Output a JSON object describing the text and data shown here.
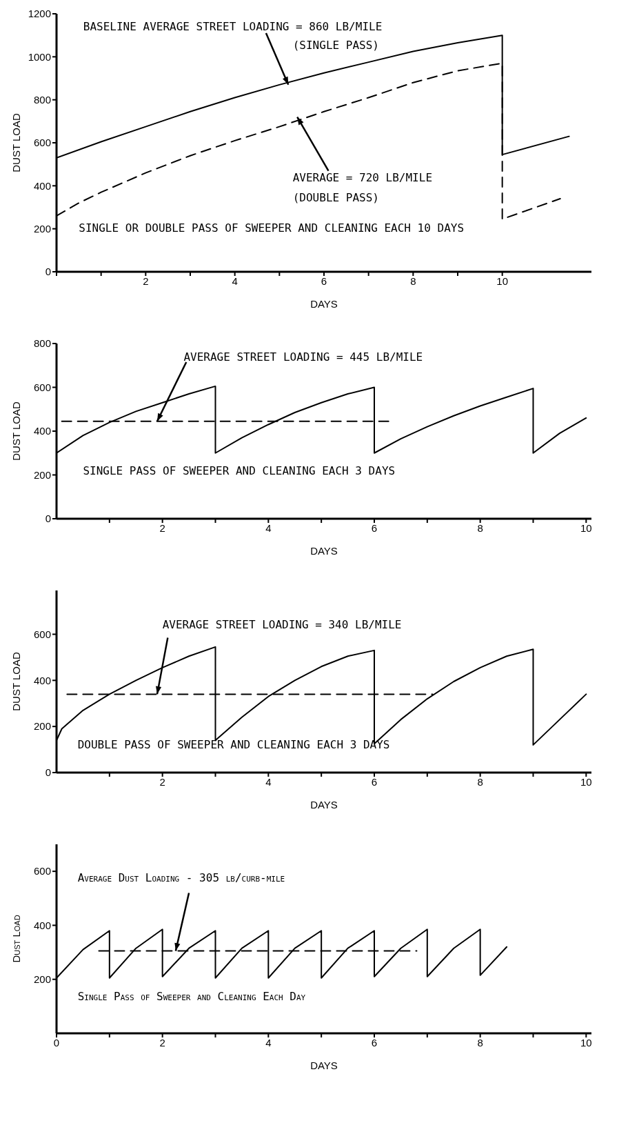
{
  "chart_data": [
    {
      "type": "line",
      "xlabel": "DAYS",
      "ylabel": "DUST LOAD",
      "xlim": [
        0,
        12
      ],
      "ylim": [
        0,
        1200
      ],
      "xticks": [
        {
          "value": 0,
          "label": null
        },
        {
          "value": 1,
          "label": null
        },
        2,
        {
          "value": 3,
          "label": null
        },
        4,
        {
          "value": 5,
          "label": null
        },
        6,
        {
          "value": 7,
          "label": null
        },
        8,
        {
          "value": 9,
          "label": null
        },
        10
      ],
      "yticks": [
        0,
        200,
        400,
        600,
        800,
        1000,
        1200
      ],
      "series": [
        {
          "type": "line",
          "color": "#000000",
          "line_style": "solid",
          "x": [
            0,
            1,
            2,
            3,
            4,
            5,
            6,
            7,
            8,
            9,
            10,
            10,
            11.5
          ],
          "values": [
            530,
            605,
            675,
            745,
            810,
            870,
            925,
            975,
            1025,
            1065,
            1100,
            545,
            630
          ]
        },
        {
          "type": "line",
          "color": "#000000",
          "line_style": "dashed",
          "x": [
            0,
            0.5,
            1,
            2,
            3,
            4,
            5,
            6,
            7,
            8,
            9,
            10,
            10,
            11.3
          ],
          "values": [
            260,
            320,
            370,
            460,
            540,
            610,
            675,
            745,
            810,
            880,
            935,
            970,
            245,
            340
          ]
        }
      ],
      "annotations": [
        {
          "text": "BASELINE AVERAGE STREET LOADING = 860 LB/MILE",
          "x": 5.2,
          "y": 870
        },
        "(SINGLE PASS)",
        {
          "text": "AVERAGE = 720 LB/MILE",
          "x": 5.4,
          "y": 720
        },
        "(DOUBLE PASS)",
        "SINGLE OR DOUBLE PASS OF SWEEPER AND CLEANING EACH 10 DAYS"
      ]
    },
    {
      "type": "line",
      "xlabel": "DAYS",
      "ylabel": "DUST LOAD",
      "xlim": [
        0,
        10.1
      ],
      "ylim": [
        0,
        800
      ],
      "xticks": [
        {
          "value": 1,
          "label": null
        },
        2,
        {
          "value": 3,
          "label": null
        },
        4,
        {
          "value": 5,
          "label": null
        },
        6,
        {
          "value": 7,
          "label": null
        },
        8,
        {
          "value": 9,
          "label": null
        },
        10
      ],
      "yticks": [
        0,
        200,
        400,
        600,
        800
      ],
      "series": [
        {
          "type": "line",
          "color": "#000000",
          "line_style": "solid",
          "x": [
            0,
            0.5,
            1,
            1.5,
            2,
            2.5,
            3,
            3,
            3.5,
            4,
            4.5,
            5,
            5.5,
            6,
            6,
            6.5,
            7,
            7.5,
            8,
            8.5,
            9,
            9,
            9.5,
            10
          ],
          "values": [
            300,
            380,
            440,
            490,
            530,
            570,
            605,
            300,
            370,
            430,
            485,
            530,
            570,
            600,
            300,
            365,
            420,
            470,
            515,
            555,
            595,
            300,
            390,
            460
          ]
        },
        {
          "type": "line",
          "color": "#000000",
          "line_style": "dashed",
          "x": [
            0.1,
            6.3
          ],
          "values": [
            445,
            445
          ]
        }
      ],
      "annotations": [
        {
          "text": "AVERAGE STREET LOADING = 445 LB/MILE",
          "x": 1.9,
          "y": 445
        },
        "SINGLE PASS OF SWEEPER AND CLEANING EACH 3 DAYS"
      ]
    },
    {
      "type": "line",
      "xlabel": "DAYS",
      "ylabel": "DUST LOAD",
      "xlim": [
        0,
        10.1
      ],
      "ylim": [
        0,
        790
      ],
      "xticks": [
        {
          "value": 1,
          "label": null
        },
        2,
        {
          "value": 3,
          "label": null
        },
        4,
        {
          "value": 5,
          "label": null
        },
        6,
        {
          "value": 7,
          "label": null
        },
        8,
        {
          "value": 9,
          "label": null
        },
        10
      ],
      "yticks": [
        0,
        200,
        400,
        600
      ],
      "series": [
        {
          "type": "line",
          "color": "#000000",
          "line_style": "solid",
          "x": [
            0,
            0.1,
            0.5,
            1,
            1.5,
            2,
            2.5,
            3,
            3,
            3.5,
            4,
            4.5,
            5,
            5.5,
            6,
            6,
            6.5,
            7,
            7.5,
            8,
            8.5,
            9,
            9,
            9.5,
            10
          ],
          "values": [
            140,
            190,
            270,
            340,
            400,
            455,
            505,
            545,
            140,
            240,
            330,
            400,
            460,
            505,
            530,
            125,
            230,
            320,
            395,
            455,
            505,
            535,
            120,
            230,
            340
          ]
        },
        {
          "type": "line",
          "color": "#000000",
          "line_style": "dashed",
          "x": [
            0.2,
            7.1
          ],
          "values": [
            340,
            340
          ]
        }
      ],
      "annotations": [
        {
          "text": "AVERAGE STREET LOADING = 340 LB/MILE",
          "x": 1.9,
          "y": 340
        },
        "DOUBLE PASS OF SWEEPER AND CLEANING EACH 3 DAYS"
      ]
    },
    {
      "type": "line",
      "xlabel": "DAYS",
      "ylabel": "Dust Load",
      "xlim": [
        0,
        10.1
      ],
      "ylim": [
        0,
        700
      ],
      "xticks": [
        0,
        {
          "value": 1,
          "label": null
        },
        2,
        {
          "value": 3,
          "label": null
        },
        4,
        {
          "value": 5,
          "label": null
        },
        6,
        {
          "value": 7,
          "label": null
        },
        8,
        {
          "value": 9,
          "label": null
        },
        10
      ],
      "yticks": [
        200,
        400,
        600
      ],
      "series": [
        {
          "type": "line",
          "color": "#000000",
          "line_style": "solid",
          "x": [
            0,
            0.5,
            1,
            1,
            1.5,
            2,
            2,
            2.5,
            3,
            3,
            3.5,
            4,
            4,
            4.5,
            5,
            5,
            5.5,
            6,
            6,
            6.5,
            7,
            7,
            7.5,
            8,
            8,
            8.5
          ],
          "values": [
            205,
            310,
            380,
            205,
            315,
            385,
            210,
            315,
            380,
            205,
            315,
            380,
            205,
            315,
            380,
            205,
            315,
            380,
            210,
            315,
            385,
            210,
            315,
            385,
            215,
            320
          ]
        },
        {
          "type": "line",
          "color": "#000000",
          "line_style": "dashed",
          "x": [
            0.8,
            6.8
          ],
          "values": [
            305,
            305
          ]
        }
      ],
      "annotations": [
        {
          "text": "Average Dust Loading - 305 lb/curb-mile",
          "x": 2.25,
          "y": 305
        },
        "Single Pass of Sweeper and Cleaning Each Day"
      ]
    }
  ]
}
